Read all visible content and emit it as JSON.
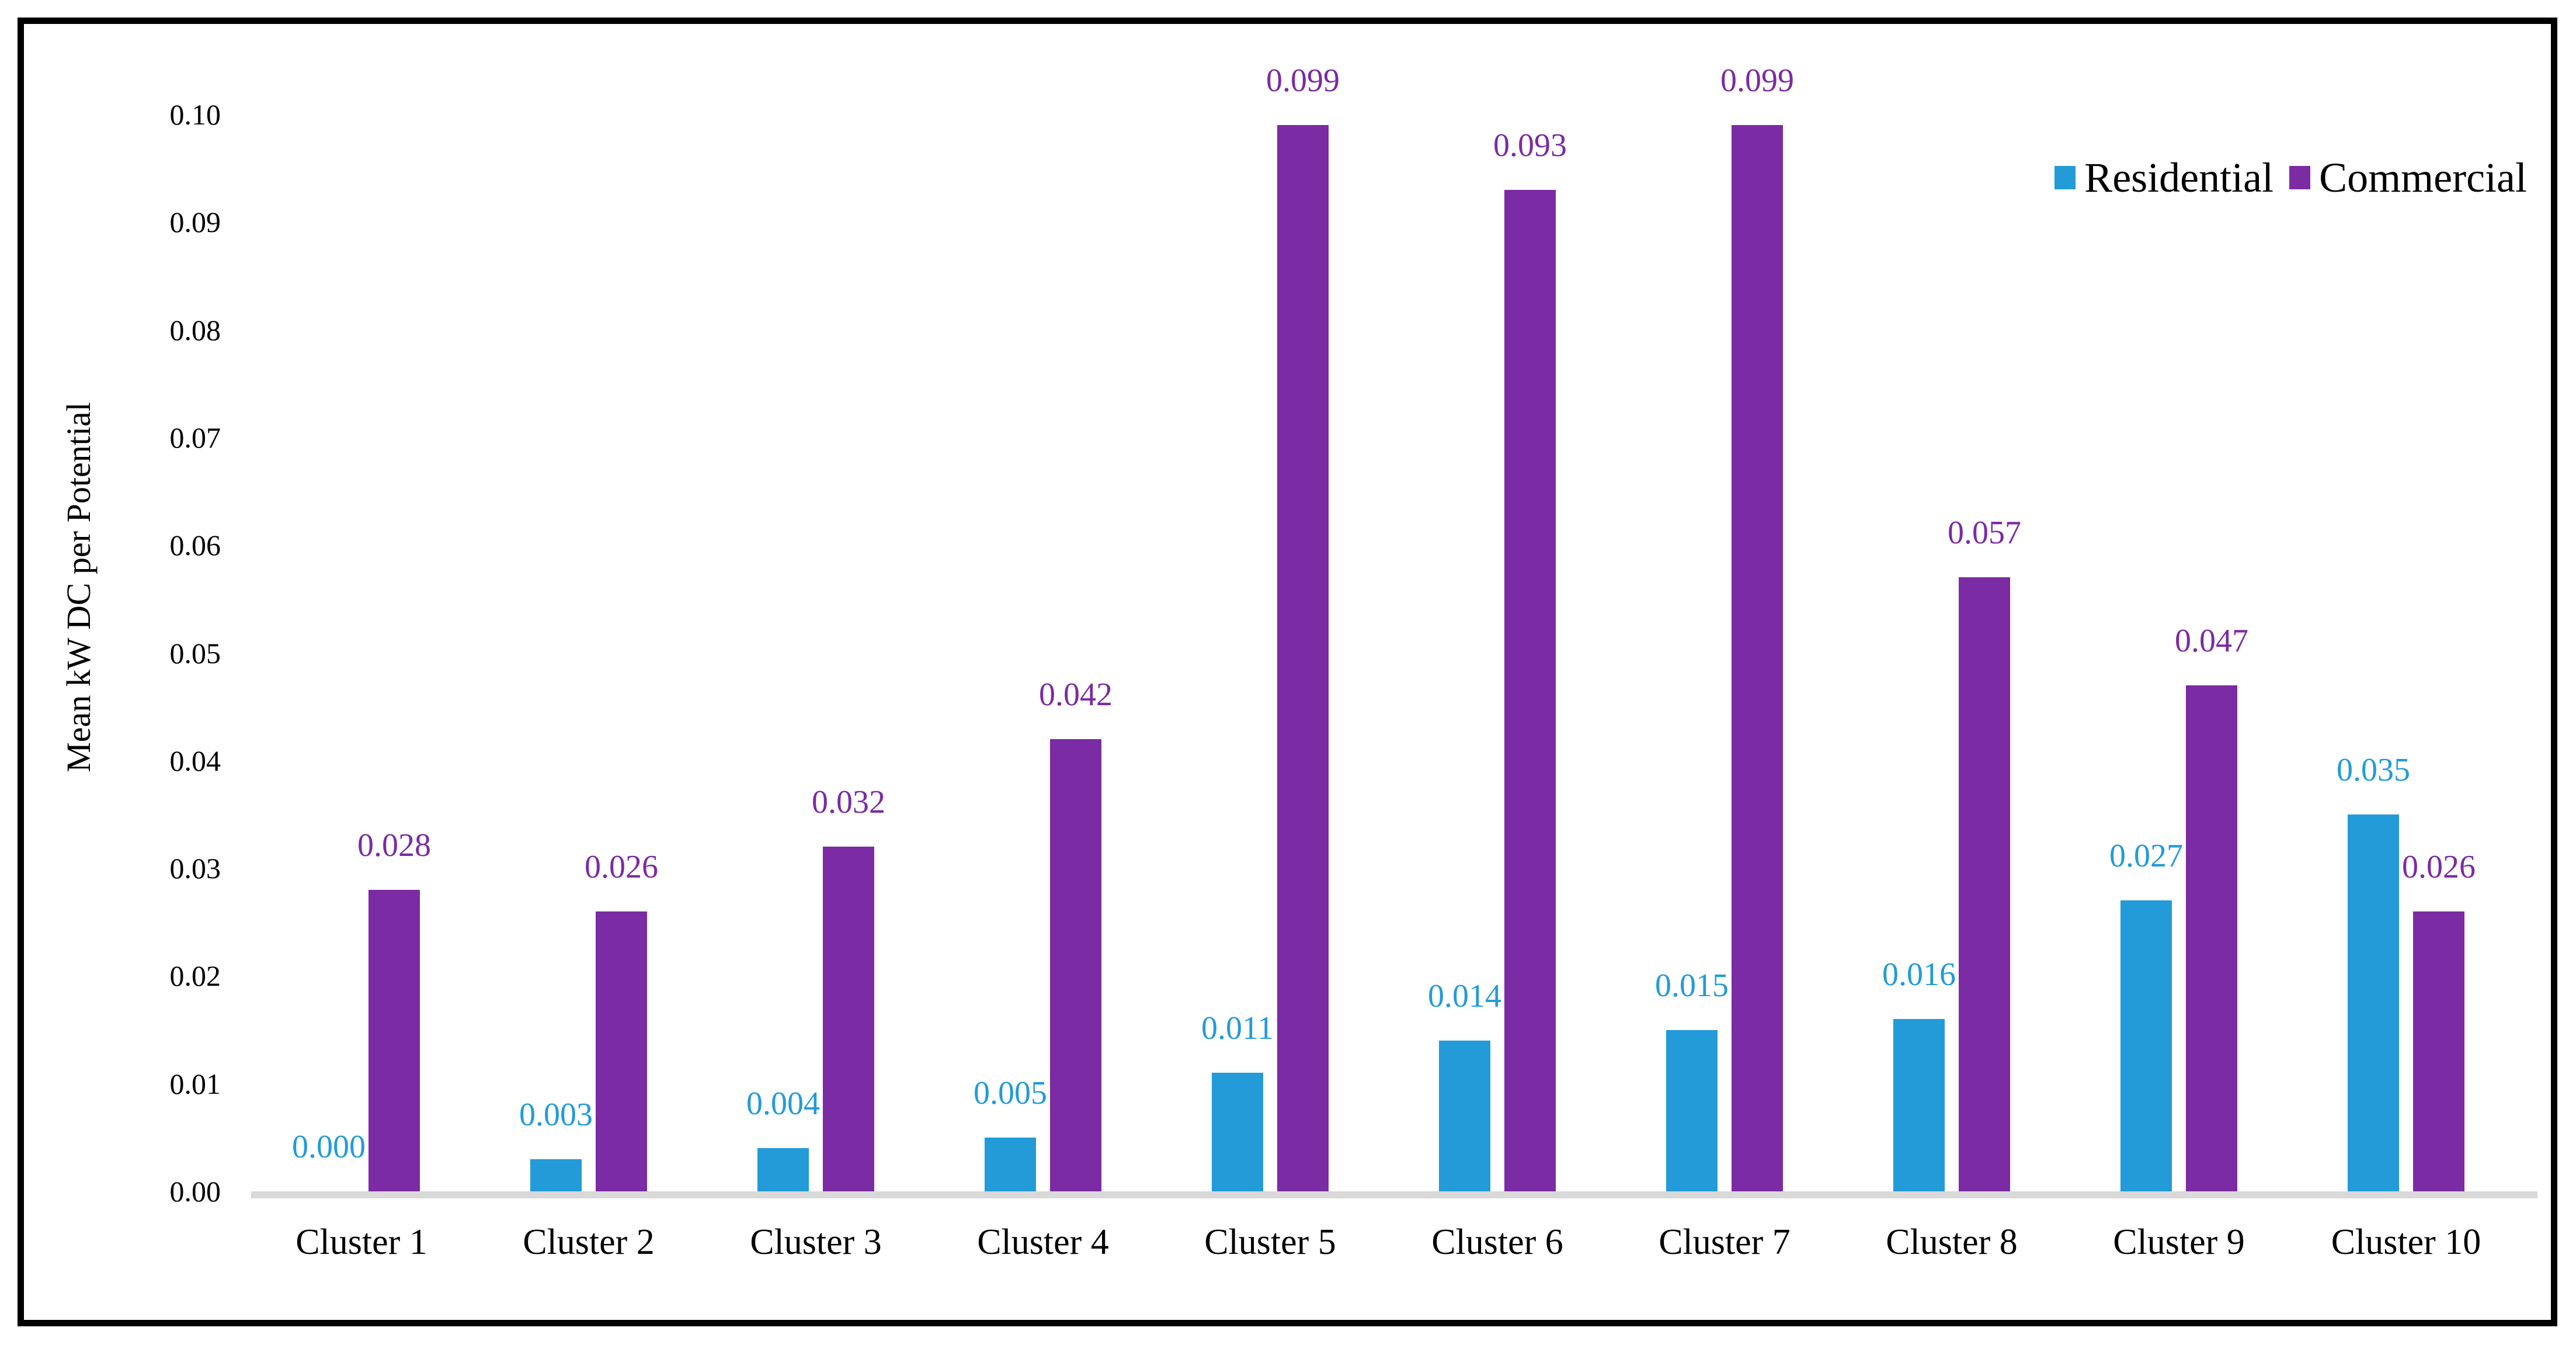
{
  "chart_data": {
    "type": "bar",
    "title": "",
    "ylabel": "Mean kW DC per Potential",
    "xlabel": "",
    "categories": [
      "Cluster 1",
      "Cluster 2",
      "Cluster 3",
      "Cluster 4",
      "Cluster 5",
      "Cluster 6",
      "Cluster 7",
      "Cluster 8",
      "Cluster 9",
      "Cluster 10"
    ],
    "series": [
      {
        "name": "Residential",
        "color": "#229BD8",
        "values": [
          0.0,
          0.003,
          0.004,
          0.005,
          0.011,
          0.014,
          0.015,
          0.016,
          0.027,
          0.035
        ],
        "labels": [
          "0.000",
          "0.003",
          "0.004",
          "0.005",
          "0.011",
          "0.014",
          "0.015",
          "0.016",
          "0.027",
          "0.035"
        ]
      },
      {
        "name": "Commercial",
        "color": "#7B2BA3",
        "values": [
          0.028,
          0.026,
          0.032,
          0.042,
          0.099,
          0.093,
          0.099,
          0.057,
          0.047,
          0.026
        ],
        "labels": [
          "0.028",
          "0.026",
          "0.032",
          "0.042",
          "0.099",
          "0.093",
          "0.099",
          "0.057",
          "0.047",
          "0.026"
        ]
      }
    ],
    "ylim": [
      0,
      0.1
    ],
    "ytick_step": 0.01,
    "ytick_labels": [
      "0.00",
      "0.01",
      "0.02",
      "0.03",
      "0.04",
      "0.05",
      "0.06",
      "0.07",
      "0.08",
      "0.09",
      "0.10"
    ],
    "grid": false,
    "legend_position": "top-right",
    "axis_line_color": "#D9D9D9",
    "frame_color": "#000000",
    "background_color": "#FFFFFF",
    "text_color": "#000000"
  }
}
